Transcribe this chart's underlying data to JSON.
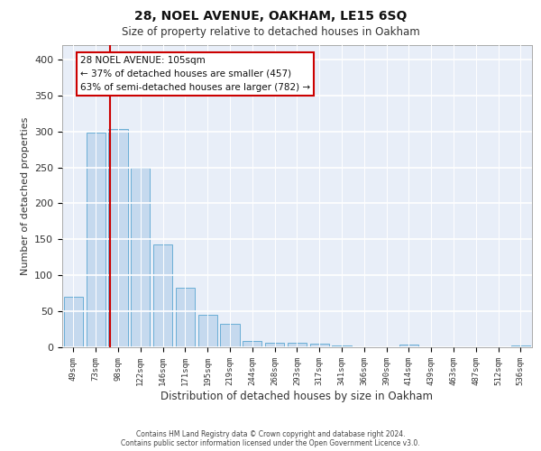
{
  "title1": "28, NOEL AVENUE, OAKHAM, LE15 6SQ",
  "title2": "Size of property relative to detached houses in Oakham",
  "xlabel": "Distribution of detached houses by size in Oakham",
  "ylabel": "Number of detached properties",
  "categories": [
    "49sqm",
    "73sqm",
    "98sqm",
    "122sqm",
    "146sqm",
    "171sqm",
    "195sqm",
    "219sqm",
    "244sqm",
    "268sqm",
    "293sqm",
    "317sqm",
    "341sqm",
    "366sqm",
    "390sqm",
    "414sqm",
    "439sqm",
    "463sqm",
    "487sqm",
    "512sqm",
    "536sqm"
  ],
  "values": [
    70,
    299,
    303,
    250,
    143,
    83,
    45,
    32,
    9,
    6,
    6,
    5,
    2,
    0,
    0,
    4,
    0,
    0,
    0,
    0,
    3
  ],
  "bar_color": "#c5d9ee",
  "bar_edge_color": "#6aaed6",
  "vline_color": "#cc0000",
  "vline_x_index": 2,
  "annotation_text": "28 NOEL AVENUE: 105sqm\n← 37% of detached houses are smaller (457)\n63% of semi-detached houses are larger (782) →",
  "ylim": [
    0,
    420
  ],
  "yticks": [
    0,
    50,
    100,
    150,
    200,
    250,
    300,
    350,
    400
  ],
  "plot_bg": "#e8eef8",
  "grid_color": "#ffffff",
  "footer_line1": "Contains HM Land Registry data © Crown copyright and database right 2024.",
  "footer_line2": "Contains public sector information licensed under the Open Government Licence v3.0."
}
